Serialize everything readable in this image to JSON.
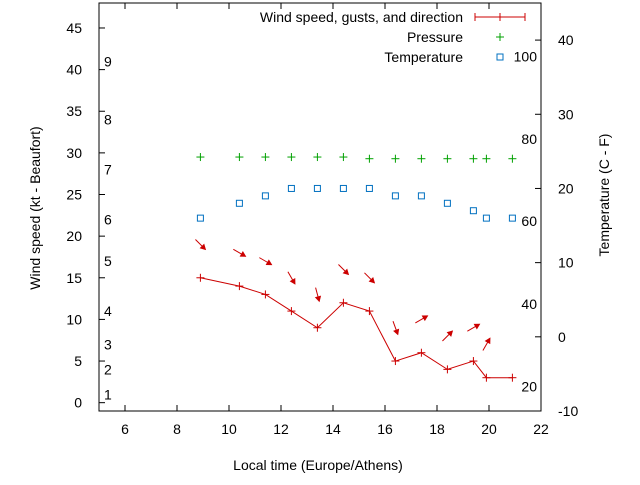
{
  "chart_data": {
    "type": "line",
    "xlabel": "Local time (Europe/Athens)",
    "ylabel": "Wind speed (kt - Beaufort)",
    "y2label": "Temperature (C - F)",
    "xlim": [
      5,
      22
    ],
    "ylim": [
      -1,
      48
    ],
    "y2lim": [
      -10,
      45
    ],
    "x_ticks": [
      6,
      8,
      10,
      12,
      14,
      16,
      18,
      20,
      22
    ],
    "y_ticks": [
      0,
      5,
      10,
      15,
      20,
      25,
      30,
      35,
      40,
      45
    ],
    "y2_ticks": [
      -10,
      0,
      10,
      20,
      30,
      40
    ],
    "beaufort_labels": [
      {
        "label": "1",
        "y": 1
      },
      {
        "label": "2",
        "y": 4
      },
      {
        "label": "3",
        "y": 7
      },
      {
        "label": "4",
        "y": 11
      },
      {
        "label": "5",
        "y": 17
      },
      {
        "label": "6",
        "y": 22
      },
      {
        "label": "7",
        "y": 28
      },
      {
        "label": "8",
        "y": 34
      },
      {
        "label": "9",
        "y": 41
      }
    ],
    "fahrenheit_labels": [
      {
        "label": "20",
        "y2": -6.7
      },
      {
        "label": "40",
        "y2": 4.4
      },
      {
        "label": "60",
        "y2": 15.6
      },
      {
        "label": "80",
        "y2": 26.7
      },
      {
        "label": "100",
        "y2": 37.8
      }
    ],
    "legend_position": "top-right",
    "series": [
      {
        "name": "Wind speed, gusts, and direction",
        "color": "#cc0000",
        "x": [
          8.9,
          10.4,
          11.4,
          12.4,
          13.4,
          14.4,
          15.4,
          16.4,
          17.4,
          18.4,
          19.4,
          19.9,
          20.9
        ],
        "values": [
          15,
          14,
          13,
          11,
          9,
          12,
          11,
          5,
          6,
          4,
          5,
          3,
          3
        ],
        "direction_arrows": [
          {
            "x": 8.9,
            "y": 19,
            "angle": 135
          },
          {
            "x": 10.4,
            "y": 18,
            "angle": 120
          },
          {
            "x": 11.4,
            "y": 17,
            "angle": 120
          },
          {
            "x": 12.4,
            "y": 15,
            "angle": 150
          },
          {
            "x": 13.4,
            "y": 13,
            "angle": 165
          },
          {
            "x": 14.4,
            "y": 16,
            "angle": 135
          },
          {
            "x": 15.4,
            "y": 15,
            "angle": 135
          },
          {
            "x": 16.4,
            "y": 9,
            "angle": 160
          },
          {
            "x": 17.4,
            "y": 10,
            "angle": 60
          },
          {
            "x": 18.4,
            "y": 8,
            "angle": 45
          },
          {
            "x": 19.4,
            "y": 9,
            "angle": 60
          },
          {
            "x": 19.9,
            "y": 7,
            "angle": 30
          }
        ]
      },
      {
        "name": "Pressure",
        "color": "#00a000",
        "marker": "plus",
        "x": [
          8.9,
          10.4,
          11.4,
          12.4,
          13.4,
          14.4,
          15.4,
          16.4,
          17.4,
          18.4,
          19.4,
          19.9,
          20.9
        ],
        "values": [
          29.5,
          29.5,
          29.5,
          29.5,
          29.5,
          29.5,
          29.3,
          29.3,
          29.3,
          29.3,
          29.3,
          29.3,
          29.3
        ]
      },
      {
        "name": "Temperature",
        "color": "#0070c0",
        "marker": "square",
        "axis": "y2",
        "x": [
          8.9,
          10.4,
          11.4,
          12.4,
          13.4,
          14.4,
          15.4,
          16.4,
          17.4,
          18.4,
          19.4,
          19.9,
          20.9
        ],
        "values": [
          16,
          18,
          19,
          20,
          20,
          20,
          20,
          19,
          19,
          18,
          17,
          16,
          16
        ]
      }
    ]
  }
}
